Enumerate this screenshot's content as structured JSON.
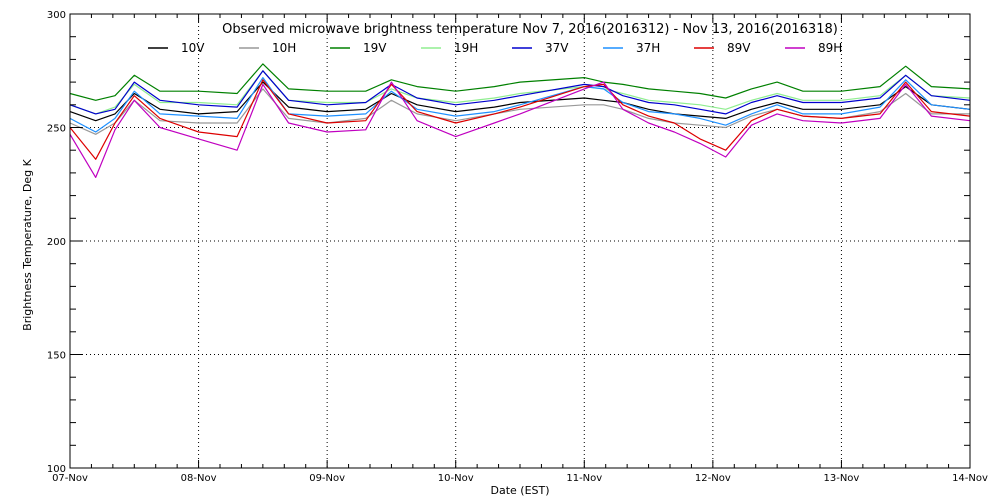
{
  "chart_data": {
    "type": "line",
    "title": "Observed microwave brightness temperature Nov  7, 2016(2016312) - Nov 13, 2016(2016318)",
    "xlabel": "Date (EST)",
    "ylabel": "Brightness Temperature, Deg K",
    "xlim": [
      0,
      7
    ],
    "ylim": [
      100,
      300
    ],
    "x_ticks": [
      {
        "v": 0,
        "label": "07-Nov"
      },
      {
        "v": 1,
        "label": "08-Nov"
      },
      {
        "v": 2,
        "label": "09-Nov"
      },
      {
        "v": 3,
        "label": "10-Nov"
      },
      {
        "v": 4,
        "label": "11-Nov"
      },
      {
        "v": 5,
        "label": "12-Nov"
      },
      {
        "v": 6,
        "label": "13-Nov"
      },
      {
        "v": 7,
        "label": "14-Nov"
      }
    ],
    "y_ticks": [
      {
        "v": 100,
        "label": "100"
      },
      {
        "v": 150,
        "label": "150"
      },
      {
        "v": 200,
        "label": "200"
      },
      {
        "v": 250,
        "label": "250"
      },
      {
        "v": 300,
        "label": "300"
      }
    ],
    "grid": true,
    "legend_position": "top",
    "x": [
      0.0,
      0.2,
      0.35,
      0.5,
      0.7,
      1.0,
      1.3,
      1.5,
      1.7,
      2.0,
      2.3,
      2.5,
      2.7,
      3.0,
      3.3,
      3.5,
      4.0,
      4.15,
      4.3,
      4.5,
      4.7,
      4.9,
      5.1,
      5.3,
      5.5,
      5.7,
      6.0,
      6.3,
      6.5,
      6.7,
      7.0
    ],
    "series": [
      {
        "name": "10V",
        "color": "#000000",
        "values": [
          257,
          253,
          256,
          265,
          258,
          256,
          257,
          270,
          259,
          257,
          258,
          265,
          260,
          257,
          259,
          261,
          263,
          262,
          261,
          258,
          256,
          255,
          254,
          258,
          261,
          258,
          258,
          260,
          268,
          260,
          258
        ]
      },
      {
        "name": "10H",
        "color": "#999999",
        "values": [
          252,
          247,
          252,
          262,
          253,
          252,
          252,
          267,
          254,
          252,
          254,
          262,
          256,
          253,
          256,
          258,
          260,
          260,
          258,
          254,
          252,
          251,
          250,
          255,
          258,
          255,
          254,
          257,
          265,
          256,
          256
        ]
      },
      {
        "name": "19V",
        "color": "#008000",
        "values": [
          265,
          262,
          264,
          273,
          266,
          266,
          265,
          278,
          267,
          266,
          266,
          271,
          268,
          266,
          268,
          270,
          272,
          270,
          269,
          267,
          266,
          265,
          263,
          267,
          270,
          266,
          266,
          268,
          277,
          268,
          267
        ]
      },
      {
        "name": "19H",
        "color": "#90ee90",
        "values": [
          260,
          256,
          259,
          269,
          261,
          261,
          260,
          275,
          262,
          261,
          261,
          267,
          263,
          261,
          263,
          265,
          268,
          267,
          265,
          262,
          261,
          260,
          258,
          262,
          265,
          262,
          262,
          264,
          273,
          264,
          263
        ]
      },
      {
        "name": "37V",
        "color": "#0000cd",
        "values": [
          260,
          256,
          258,
          270,
          262,
          260,
          259,
          275,
          262,
          260,
          261,
          269,
          263,
          260,
          262,
          264,
          269,
          268,
          264,
          261,
          260,
          258,
          256,
          261,
          264,
          261,
          261,
          263,
          273,
          264,
          262
        ]
      },
      {
        "name": "37H",
        "color": "#1e90ff",
        "values": [
          254,
          248,
          254,
          266,
          256,
          255,
          254,
          272,
          256,
          255,
          256,
          266,
          258,
          255,
          257,
          260,
          268,
          267,
          261,
          257,
          256,
          254,
          251,
          256,
          260,
          256,
          256,
          259,
          271,
          260,
          258
        ]
      },
      {
        "name": "89V",
        "color": "#dd0000",
        "values": [
          250,
          236,
          252,
          264,
          254,
          248,
          246,
          271,
          256,
          252,
          253,
          269,
          257,
          252,
          256,
          259,
          268,
          269,
          260,
          255,
          252,
          245,
          240,
          253,
          258,
          255,
          254,
          256,
          270,
          257,
          255
        ]
      },
      {
        "name": "89H",
        "color": "#c000c0",
        "values": [
          247,
          228,
          249,
          262,
          250,
          245,
          240,
          269,
          252,
          248,
          249,
          270,
          253,
          246,
          252,
          256,
          267,
          270,
          258,
          252,
          248,
          243,
          237,
          251,
          256,
          253,
          252,
          254,
          269,
          255,
          253
        ]
      }
    ]
  }
}
